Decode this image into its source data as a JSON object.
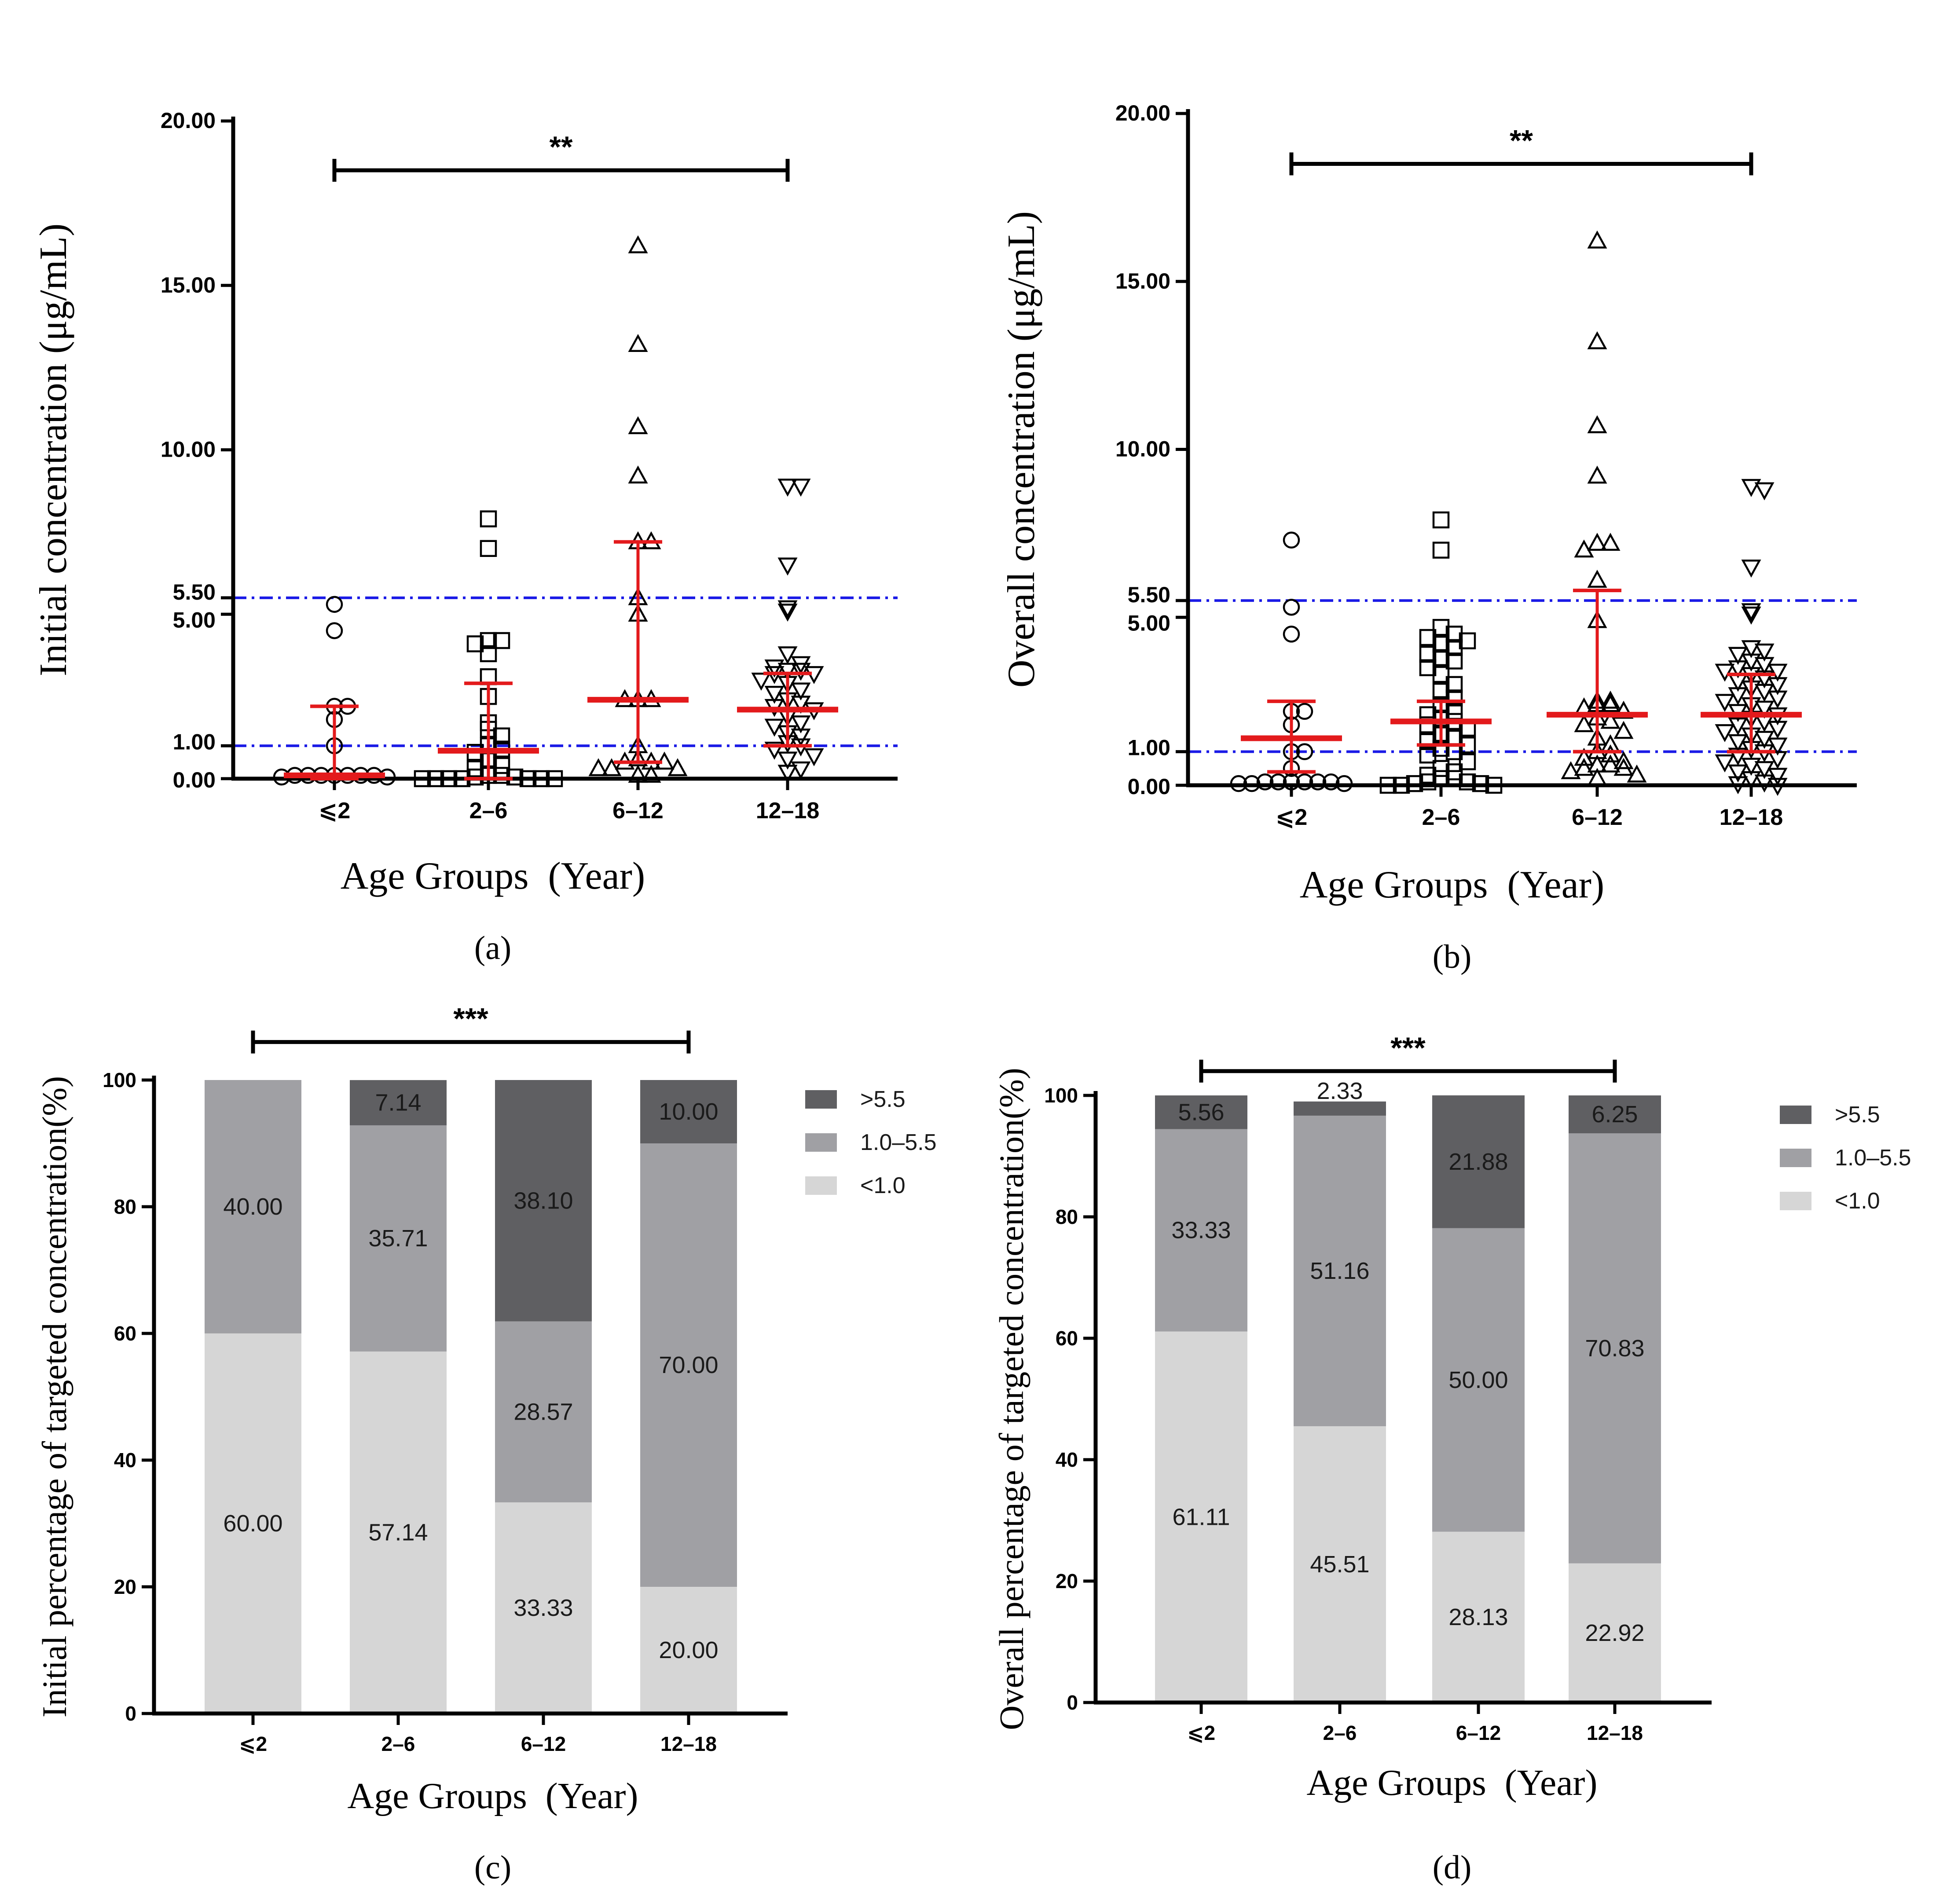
{
  "colors": {
    "median": "#e31a1c",
    "ref_line": "#1a1ae6",
    "axis": "#000000",
    "seg_high": "#5f5f62",
    "seg_mid": "#a0a0a4",
    "seg_low": "#d6d6d6",
    "marker_stroke": "#000000"
  },
  "panels": {
    "a": {
      "label": "a",
      "chart_data": {
        "type": "scatter",
        "title": "",
        "xlabel": "Age Groups (Year)",
        "ylabel": "Initial concentration (μg/mL)",
        "categories": [
          "⩽2",
          "2–6",
          "6–12",
          "12–18"
        ],
        "ylim": [
          0,
          20
        ],
        "yticks": [
          {
            "value": 0,
            "label": "0.00"
          },
          {
            "value": 1,
            "label": "1.00"
          },
          {
            "value": 5,
            "label": "5.00"
          },
          {
            "value": 5.5,
            "label": "5.50"
          },
          {
            "value": 10,
            "label": "10.00"
          },
          {
            "value": 15,
            "label": "15.00"
          },
          {
            "value": 20,
            "label": "20.00"
          }
        ],
        "ref_lines": [
          1.0,
          5.5
        ],
        "significance": {
          "from": 0,
          "to": 3,
          "label": "**",
          "y": 18.5
        },
        "groups": [
          {
            "category": "⩽2",
            "marker": "circle",
            "median": 0.1,
            "lower": 0.0,
            "upper": 2.2,
            "values": [
              5.3,
              4.5,
              2.2,
              2.2,
              1.8,
              1.0,
              0.1,
              0.1,
              0.1,
              0.1,
              0.1,
              0.1,
              0.1,
              0.05,
              0.05
            ]
          },
          {
            "category": "2–6",
            "marker": "square",
            "median": 0.85,
            "lower": 0.0,
            "upper": 2.9,
            "values": [
              7.9,
              7.0,
              4.2,
              4.2,
              4.1,
              3.8,
              3.1,
              2.5,
              1.7,
              1.5,
              1.3,
              1.0,
              0.9,
              0.8,
              0.6,
              0.4,
              0.3,
              0.1,
              0.1,
              0.05,
              0.05,
              0.0,
              0.0,
              0.0,
              0.0,
              0.0,
              0.0,
              0.0
            ]
          },
          {
            "category": "6–12",
            "marker": "triangle",
            "median": 2.4,
            "lower": 0.5,
            "upper": 7.2,
            "values": [
              16.2,
              13.2,
              10.7,
              9.2,
              7.2,
              7.2,
              5.5,
              5.0,
              2.4,
              2.4,
              2.4,
              1.0,
              0.6,
              0.5,
              0.5,
              0.5,
              0.3,
              0.3,
              0.3,
              0.1,
              0.1
            ]
          },
          {
            "category": "12–18",
            "marker": "triangle-down",
            "median": 2.1,
            "lower": 1.0,
            "upper": 3.2,
            "values": [
              8.9,
              8.9,
              6.5,
              5.2,
              5.1,
              3.8,
              3.5,
              3.4,
              3.3,
              3.3,
              3.2,
              3.2,
              3.0,
              2.9,
              2.7,
              2.6,
              2.4,
              2.3,
              2.2,
              2.1,
              1.9,
              1.7,
              1.6,
              1.4,
              1.3,
              1.1,
              1.0,
              0.9,
              0.7,
              0.6,
              0.3,
              0.2
            ]
          }
        ]
      }
    },
    "b": {
      "label": "b",
      "chart_data": {
        "type": "scatter",
        "title": "",
        "xlabel": "Age Groups (Year)",
        "ylabel": "Overall concentration (μg/mL)",
        "categories": [
          "⩽2",
          "2–6",
          "6–12",
          "12–18"
        ],
        "ylim": [
          0,
          20
        ],
        "yticks": [
          {
            "value": 0,
            "label": "0.00"
          },
          {
            "value": 1,
            "label": "1.00"
          },
          {
            "value": 5,
            "label": "5.00"
          },
          {
            "value": 5.5,
            "label": "5.50"
          },
          {
            "value": 10,
            "label": "10.00"
          },
          {
            "value": 15,
            "label": "15.00"
          },
          {
            "value": 20,
            "label": "20.00"
          }
        ],
        "ref_lines": [
          1.0,
          5.5
        ],
        "significance": {
          "from": 0,
          "to": 3,
          "label": "**",
          "y": 18.5
        },
        "groups": [
          {
            "category": "⩽2",
            "marker": "circle",
            "median": 1.4,
            "lower": 0.4,
            "upper": 2.5,
            "values": [
              7.3,
              5.3,
              4.5,
              2.2,
              2.2,
              1.8,
              1.0,
              1.0,
              0.5,
              0.1,
              0.1,
              0.1,
              0.1,
              0.1,
              0.1,
              0.05,
              0.05,
              0.05
            ]
          },
          {
            "category": "2–6",
            "marker": "square",
            "median": 1.9,
            "lower": 1.2,
            "upper": 2.5,
            "values": [
              7.9,
              7.0,
              4.7,
              4.5,
              4.4,
              4.3,
              4.2,
              4.1,
              3.9,
              3.8,
              3.7,
              3.5,
              3.3,
              3.0,
              2.8,
              2.6,
              2.4,
              2.2,
              2.1,
              2.0,
              1.9,
              1.8,
              1.7,
              1.5,
              1.4,
              1.3,
              1.2,
              1.1,
              1.0,
              0.9,
              0.7,
              0.5,
              0.4,
              0.3,
              0.2,
              0.2,
              0.1,
              0.1,
              0.05,
              0.05,
              0.0,
              0.0,
              0.0
            ]
          },
          {
            "category": "6–12",
            "marker": "triangle",
            "median": 2.1,
            "lower": 1.0,
            "upper": 5.8,
            "values": [
              16.2,
              13.2,
              10.7,
              9.2,
              7.2,
              7.2,
              7.0,
              6.1,
              4.9,
              2.5,
              2.5,
              2.4,
              2.4,
              2.3,
              2.2,
              2.0,
              1.9,
              1.8,
              1.6,
              1.4,
              1.2,
              1.0,
              0.9,
              0.8,
              0.7,
              0.6,
              0.6,
              0.5,
              0.5,
              0.4,
              0.3,
              0.2
            ]
          },
          {
            "category": "12–18",
            "marker": "triangle-down",
            "median": 2.1,
            "lower": 1.0,
            "upper": 3.3,
            "values": [
              8.9,
              8.8,
              6.5,
              5.2,
              5.1,
              4.1,
              4.0,
              3.9,
              3.7,
              3.6,
              3.5,
              3.4,
              3.4,
              3.3,
              3.2,
              3.1,
              3.0,
              2.9,
              2.8,
              2.7,
              2.6,
              2.5,
              2.4,
              2.3,
              2.2,
              2.1,
              2.0,
              1.9,
              1.8,
              1.7,
              1.6,
              1.5,
              1.4,
              1.3,
              1.2,
              1.1,
              1.0,
              0.9,
              0.8,
              0.7,
              0.6,
              0.5,
              0.4,
              0.3,
              0.2,
              0.1,
              0.05,
              0.0
            ]
          }
        ]
      }
    },
    "c": {
      "label": "c",
      "chart_data": {
        "type": "bar",
        "stacked": true,
        "title": "",
        "xlabel": "Age Groups (Year)",
        "ylabel": "Initial percentage of targeted concentration(%)",
        "categories": [
          "⩽2",
          "2–6",
          "6–12",
          "12–18"
        ],
        "ylim": [
          0,
          100
        ],
        "yticks": [
          0,
          20,
          40,
          60,
          80,
          100
        ],
        "legend": {
          "position": "top-right",
          "entries": [
            ">5.5",
            "1.0–5.5",
            "<1.0"
          ]
        },
        "significance": {
          "from": 0,
          "to": 3,
          "label": "***",
          "y": 106
        },
        "series": [
          {
            "name": "<1.0",
            "values": [
              60.0,
              57.14,
              33.33,
              20.0
            ],
            "labels": [
              "60.00",
              "57.14",
              "33.33",
              "20.00"
            ]
          },
          {
            "name": "1.0–5.5",
            "values": [
              40.0,
              35.71,
              28.57,
              70.0
            ],
            "labels": [
              "40.00",
              "35.71",
              "28.57",
              "70.00"
            ]
          },
          {
            "name": ">5.5",
            "values": [
              0,
              7.14,
              38.1,
              10.0
            ],
            "labels": [
              "",
              "7.14",
              "38.10",
              "10.00"
            ]
          }
        ]
      }
    },
    "d": {
      "label": "d",
      "chart_data": {
        "type": "bar",
        "stacked": true,
        "title": "",
        "xlabel": "Age Groups (Year)",
        "ylabel": "Overall percentage of targeted concentration(%)",
        "categories": [
          "⩽2",
          "2–6",
          "6–12",
          "12–18"
        ],
        "ylim": [
          0,
          100
        ],
        "yticks": [
          0,
          20,
          40,
          60,
          80,
          100
        ],
        "legend": {
          "position": "top-right",
          "entries": [
            ">5.5",
            "1.0–5.5",
            "<1.0"
          ]
        },
        "significance": {
          "from": 0,
          "to": 3,
          "label": "***",
          "y": 104
        },
        "series": [
          {
            "name": "<1.0",
            "values": [
              61.11,
              45.51,
              28.13,
              22.92
            ],
            "labels": [
              "61.11",
              "45.51",
              "28.13",
              "22.92"
            ]
          },
          {
            "name": "1.0–5.5",
            "values": [
              33.33,
              51.16,
              50.0,
              70.83
            ],
            "labels": [
              "33.33",
              "51.16",
              "50.00",
              "70.83"
            ]
          },
          {
            "name": ">5.5",
            "values": [
              5.56,
              2.33,
              21.88,
              6.25
            ],
            "labels": [
              "5.56",
              "2.33",
              "21.88",
              "6.25"
            ]
          }
        ]
      }
    }
  }
}
